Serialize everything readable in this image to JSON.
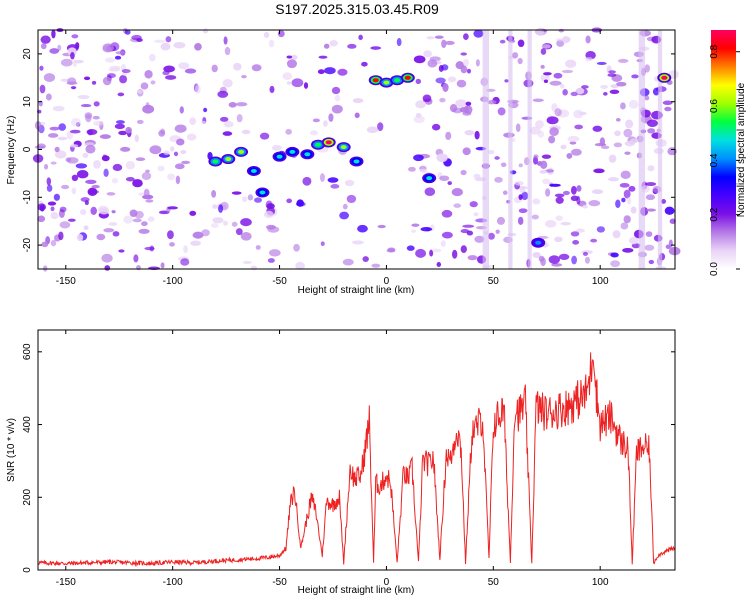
{
  "chart_data": [
    {
      "type": "heatmap",
      "title": "S197.2025.315.03.45.R09",
      "xlabel": "Height of straight line (km)",
      "ylabel": "Frequency (Hz)",
      "xlim": [
        -163,
        135
      ],
      "ylim": [
        -25,
        25
      ],
      "xticks": [
        -150,
        -100,
        -50,
        0,
        50,
        100
      ],
      "yticks": [
        -20,
        -10,
        0,
        10,
        20
      ],
      "colorbar": {
        "label": "Normalized spectral amplitude",
        "range": [
          0.0,
          0.88
        ],
        "ticks": [
          0.0,
          0.2,
          0.4,
          0.6,
          0.8
        ],
        "colors": [
          "#ffffff",
          "#e9d4f7",
          "#b57ae6",
          "#7a10e6",
          "#4600ff",
          "#0000ff",
          "#0090ff",
          "#00e0e0",
          "#00ff40",
          "#a0ff00",
          "#ffff00",
          "#ff8000",
          "#ff0000",
          "#ff0060"
        ]
      },
      "peaks": [
        {
          "x": -80,
          "y": -2.5,
          "v": 0.55
        },
        {
          "x": -74,
          "y": -2.0,
          "v": 0.62
        },
        {
          "x": -68,
          "y": -0.5,
          "v": 0.58
        },
        {
          "x": -62,
          "y": -4.5,
          "v": 0.5
        },
        {
          "x": -58,
          "y": -9.0,
          "v": 0.5
        },
        {
          "x": -50,
          "y": -1.5,
          "v": 0.45
        },
        {
          "x": -44,
          "y": -0.5,
          "v": 0.45
        },
        {
          "x": -37,
          "y": -1.0,
          "v": 0.5
        },
        {
          "x": -32,
          "y": 1.0,
          "v": 0.55
        },
        {
          "x": -27,
          "y": 1.5,
          "v": 0.85
        },
        {
          "x": -20,
          "y": 0.5,
          "v": 0.6
        },
        {
          "x": -14,
          "y": -2.5,
          "v": 0.45
        },
        {
          "x": -5,
          "y": 14.5,
          "v": 0.8
        },
        {
          "x": 0,
          "y": 14.0,
          "v": 0.6
        },
        {
          "x": 5,
          "y": 14.5,
          "v": 0.55
        },
        {
          "x": 10,
          "y": 15.0,
          "v": 0.78
        },
        {
          "x": 20,
          "y": -6.0,
          "v": 0.45
        },
        {
          "x": 71,
          "y": -19.5,
          "v": 0.42
        },
        {
          "x": 130,
          "y": 15.0,
          "v": 0.85
        }
      ]
    },
    {
      "type": "line",
      "xlabel": "Height of straight line (km)",
      "ylabel": "SNR (10 * v/v)",
      "xlim": [
        -163,
        135
      ],
      "ylim": [
        0,
        660
      ],
      "xticks": [
        -150,
        -100,
        -50,
        0,
        50,
        100
      ],
      "yticks": [
        0,
        200,
        400,
        600
      ],
      "series": [
        {
          "name": "SNR",
          "color": "#ee2222",
          "x": [
            -163,
            -150,
            -140,
            -130,
            -120,
            -110,
            -100,
            -90,
            -80,
            -70,
            -65,
            -60,
            -55,
            -50,
            -47,
            -45,
            -43,
            -40,
            -38,
            -35,
            -33,
            -30,
            -28,
            -25,
            -22,
            -20,
            -17,
            -15,
            -12,
            -10,
            -8,
            -6,
            -5,
            -3,
            0,
            2,
            5,
            8,
            10,
            12,
            15,
            17,
            20,
            22,
            25,
            28,
            30,
            31,
            33,
            35,
            37,
            40,
            42,
            45,
            48,
            50,
            52,
            55,
            58,
            60,
            62,
            65,
            68,
            70,
            75,
            80,
            85,
            90,
            93,
            95,
            97,
            98,
            100,
            105,
            110,
            113,
            115,
            117,
            120,
            123,
            125,
            127,
            130,
            135
          ],
          "values": [
            20,
            18,
            20,
            22,
            20,
            18,
            22,
            20,
            25,
            28,
            30,
            32,
            35,
            40,
            60,
            180,
            220,
            60,
            120,
            200,
            160,
            40,
            190,
            180,
            200,
            20,
            280,
            250,
            260,
            330,
            410,
            20,
            240,
            230,
            260,
            240,
            20,
            270,
            250,
            280,
            20,
            300,
            290,
            310,
            30,
            320,
            300,
            330,
            390,
            330,
            20,
            380,
            390,
            420,
            30,
            400,
            420,
            440,
            20,
            450,
            430,
            460,
            20,
            450,
            430,
            440,
            450,
            470,
            480,
            520,
            620,
            500,
            400,
            420,
            350,
            340,
            20,
            320,
            340,
            330,
            20,
            40,
            50,
            60
          ]
        }
      ]
    }
  ]
}
